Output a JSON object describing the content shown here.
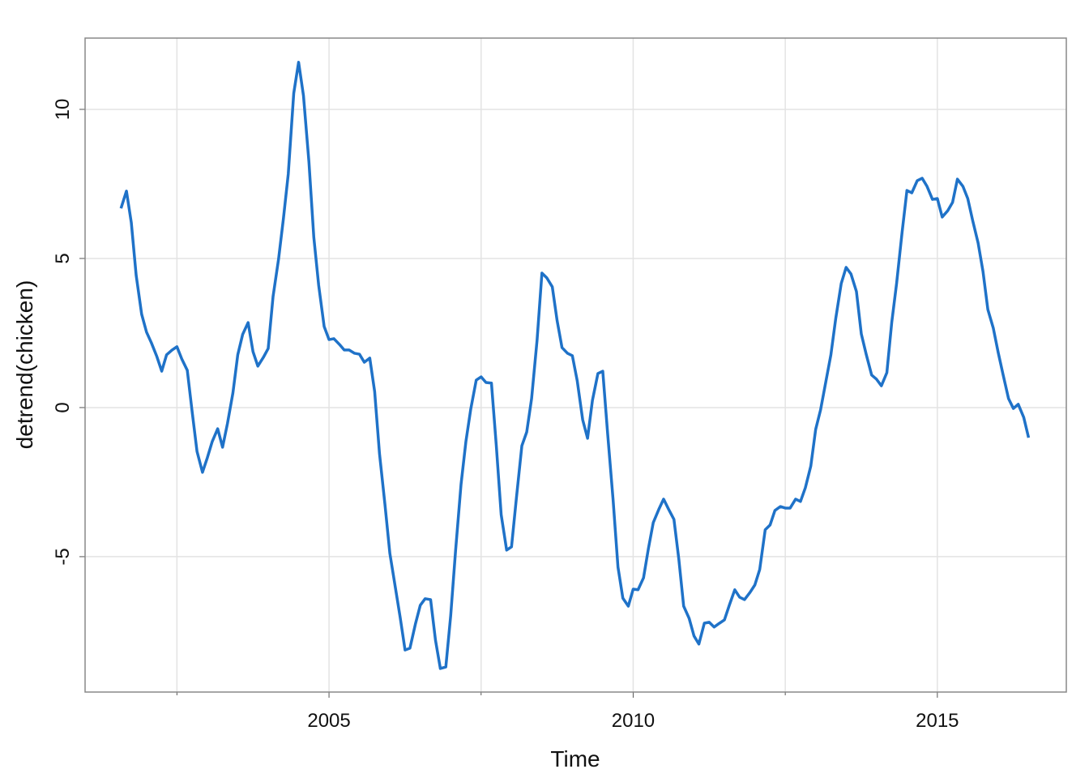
{
  "chart_data": {
    "type": "line",
    "x_label": "Time",
    "y_label": "detrend(chicken)",
    "xlim": [
      2000.99,
      2017.12
    ],
    "ylim": [
      -9.54,
      12.39
    ],
    "xticks": [
      2005,
      2010,
      2015
    ],
    "xminor": [
      2002.5,
      2007.5,
      2012.5
    ],
    "yticks": [
      -5,
      0,
      5,
      10
    ],
    "grid": true,
    "series": [
      {
        "name": "detrend(chicken)",
        "color": "#1f72c8",
        "x": [
          2001.58,
          2001.67,
          2001.75,
          2001.83,
          2001.92,
          2002,
          2002.08,
          2002.17,
          2002.25,
          2002.33,
          2002.42,
          2002.5,
          2002.58,
          2002.67,
          2002.75,
          2002.83,
          2002.92,
          2003,
          2003.08,
          2003.17,
          2003.25,
          2003.33,
          2003.42,
          2003.5,
          2003.58,
          2003.67,
          2003.75,
          2003.83,
          2003.92,
          2004,
          2004.08,
          2004.17,
          2004.25,
          2004.33,
          2004.42,
          2004.5,
          2004.58,
          2004.67,
          2004.75,
          2004.83,
          2004.92,
          2005,
          2005.08,
          2005.17,
          2005.25,
          2005.33,
          2005.42,
          2005.5,
          2005.58,
          2005.67,
          2005.75,
          2005.83,
          2005.92,
          2006,
          2006.08,
          2006.17,
          2006.25,
          2006.33,
          2006.42,
          2006.5,
          2006.58,
          2006.67,
          2006.75,
          2006.83,
          2006.92,
          2007,
          2007.08,
          2007.17,
          2007.25,
          2007.33,
          2007.42,
          2007.5,
          2007.58,
          2007.67,
          2007.75,
          2007.83,
          2007.92,
          2008,
          2008.08,
          2008.17,
          2008.25,
          2008.33,
          2008.42,
          2008.5,
          2008.58,
          2008.67,
          2008.75,
          2008.83,
          2008.92,
          2009,
          2009.08,
          2009.17,
          2009.25,
          2009.33,
          2009.42,
          2009.5,
          2009.58,
          2009.67,
          2009.75,
          2009.83,
          2009.92,
          2010,
          2010.08,
          2010.17,
          2010.25,
          2010.33,
          2010.42,
          2010.5,
          2010.58,
          2010.67,
          2010.75,
          2010.83,
          2010.92,
          2011,
          2011.08,
          2011.17,
          2011.25,
          2011.33,
          2011.42,
          2011.5,
          2011.58,
          2011.67,
          2011.75,
          2011.83,
          2011.92,
          2012,
          2012.08,
          2012.17,
          2012.25,
          2012.33,
          2012.42,
          2012.5,
          2012.58,
          2012.67,
          2012.75,
          2012.83,
          2012.92,
          2013,
          2013.08,
          2013.17,
          2013.25,
          2013.33,
          2013.42,
          2013.5,
          2013.58,
          2013.67,
          2013.75,
          2013.83,
          2013.92,
          2014,
          2014.08,
          2014.17,
          2014.25,
          2014.33,
          2014.42,
          2014.5,
          2014.58,
          2014.67,
          2014.75,
          2014.83,
          2014.92,
          2015,
          2015.08,
          2015.17,
          2015.25,
          2015.33,
          2015.42,
          2015.5,
          2015.58,
          2015.67,
          2015.75,
          2015.83,
          2015.92,
          2016,
          2016.08,
          2016.17,
          2016.25,
          2016.33,
          2016.42,
          2016.5
        ],
        "values": [
          6.68,
          7.26,
          6.2,
          4.43,
          3.13,
          2.53,
          2.17,
          1.71,
          1.22,
          1.77,
          1.93,
          2.04,
          1.63,
          1.25,
          -0.14,
          -1.47,
          -2.17,
          -1.68,
          -1.14,
          -0.71,
          -1.33,
          -0.54,
          0.49,
          1.77,
          2.45,
          2.85,
          1.88,
          1.39,
          1.68,
          1.98,
          3.72,
          4.97,
          6.33,
          7.83,
          10.54,
          11.58,
          10.46,
          8.23,
          5.71,
          4.1,
          2.72,
          2.28,
          2.31,
          2.12,
          1.93,
          1.93,
          1.82,
          1.79,
          1.52,
          1.66,
          0.54,
          -1.55,
          -3.26,
          -4.89,
          -5.9,
          -7.04,
          -8.13,
          -8.07,
          -7.26,
          -6.63,
          -6.41,
          -6.44,
          -7.8,
          -8.75,
          -8.7,
          -6.98,
          -4.81,
          -2.58,
          -1.14,
          -0.05,
          0.92,
          1.03,
          0.84,
          0.82,
          -1.28,
          -3.59,
          -4.78,
          -4.67,
          -3.04,
          -1.28,
          -0.82,
          0.3,
          2.26,
          4.51,
          4.35,
          4.05,
          2.91,
          2.01,
          1.82,
          1.74,
          0.9,
          -0.41,
          -1.03,
          0.24,
          1.14,
          1.22,
          -0.87,
          -3.1,
          -5.35,
          -6.39,
          -6.66,
          -6.09,
          -6.11,
          -5.71,
          -4.73,
          -3.86,
          -3.42,
          -3.07,
          -3.4,
          -3.75,
          -5.08,
          -6.66,
          -7.07,
          -7.66,
          -7.93,
          -7.23,
          -7.2,
          -7.36,
          -7.23,
          -7.12,
          -6.63,
          -6.11,
          -6.36,
          -6.44,
          -6.2,
          -5.95,
          -5.43,
          -4.1,
          -3.94,
          -3.45,
          -3.32,
          -3.37,
          -3.37,
          -3.07,
          -3.15,
          -2.69,
          -1.96,
          -0.73,
          -0.08,
          0.9,
          1.77,
          2.99,
          4.16,
          4.7,
          4.48,
          3.89,
          2.47,
          1.79,
          1.09,
          0.95,
          0.73,
          1.17,
          2.85,
          4.16,
          5.87,
          7.28,
          7.2,
          7.61,
          7.69,
          7.42,
          6.98,
          7.01,
          6.39,
          6.6,
          6.88,
          7.66,
          7.42,
          7.01,
          6.28,
          5.52,
          4.57,
          3.29,
          2.66,
          1.85,
          1.11,
          0.3,
          -0.03,
          0.11,
          -0.33,
          -1.01
        ]
      }
    ]
  }
}
